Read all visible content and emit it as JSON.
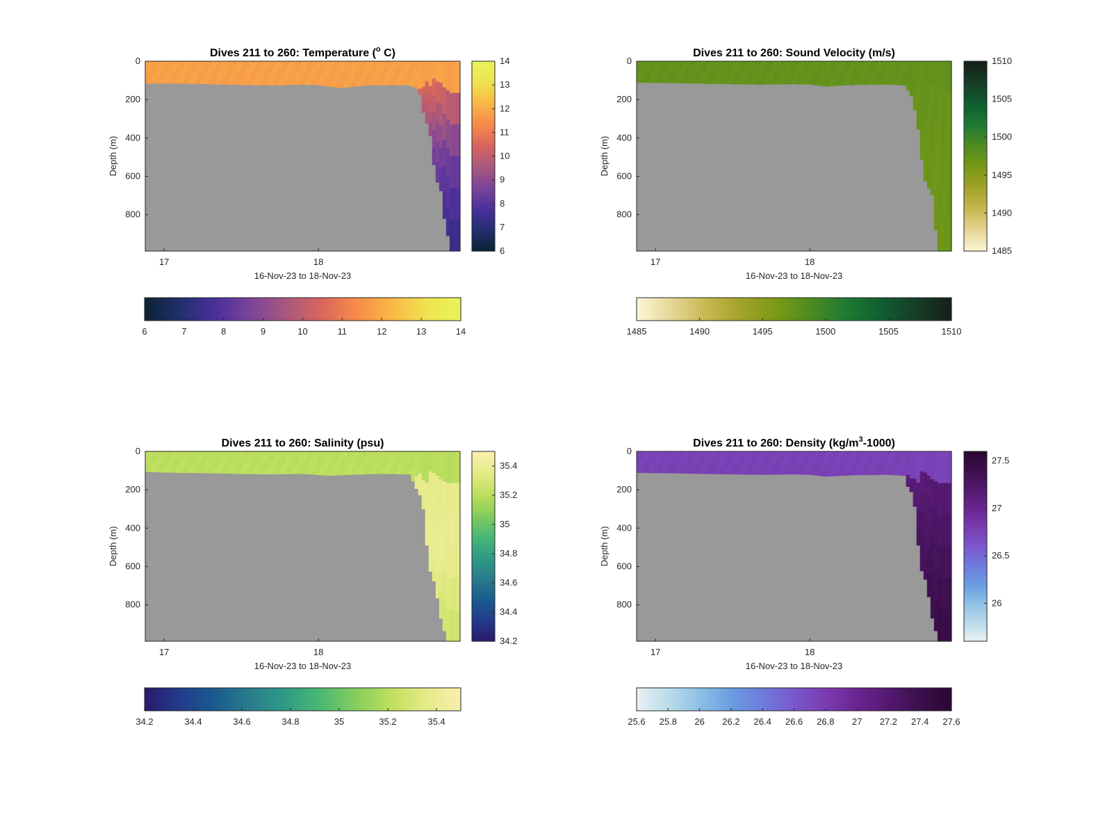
{
  "figure_background": "#ffffff",
  "mask_color": "#999999",
  "chart_data": [
    {
      "type": "heatmap",
      "variable": "temperature",
      "title": "Dives 211 to 260: Temperature (",
      "title_unit_sup": "o",
      "title_tail": " C)",
      "xlabel": "16-Nov-23 to 18-Nov-23",
      "ylabel": "Depth (m)",
      "x_ticks": [
        "17",
        "18"
      ],
      "x_tick_fraction": [
        0.06,
        0.55
      ],
      "y_ticks": [
        0,
        200,
        400,
        600,
        800
      ],
      "ylim": [
        0,
        990
      ],
      "y_reversed": true,
      "clim": [
        6,
        14
      ],
      "colorbar_ticks": [
        6,
        7,
        8,
        9,
        10,
        11,
        12,
        13,
        14
      ],
      "colormap": [
        "#0a2233",
        "#222f6e",
        "#4a2f9a",
        "#7b4499",
        "#a8577f",
        "#d7655e",
        "#f7894a",
        "#f8b646",
        "#f0e24f",
        "#e9f45a"
      ],
      "surface_value": 11.8,
      "deep_gradient": [
        11.2,
        8.5,
        7.2
      ],
      "bottom_depth_profile": [
        [
          0,
          115
        ],
        [
          0.1,
          115
        ],
        [
          0.2,
          118
        ],
        [
          0.3,
          122
        ],
        [
          0.4,
          125
        ],
        [
          0.5,
          120
        ],
        [
          0.55,
          123
        ],
        [
          0.62,
          138
        ],
        [
          0.7,
          125
        ],
        [
          0.8,
          123
        ],
        [
          0.84,
          125
        ],
        [
          0.87,
          150
        ],
        [
          0.88,
          250
        ],
        [
          0.9,
          350
        ],
        [
          0.91,
          420
        ],
        [
          0.92,
          600
        ],
        [
          0.94,
          680
        ],
        [
          0.95,
          820
        ],
        [
          0.96,
          900
        ],
        [
          0.97,
          990
        ]
      ],
      "grid": false
    },
    {
      "type": "heatmap",
      "variable": "sound_velocity",
      "title": "Dives 211 to 260: Sound Velocity (m/s)",
      "xlabel": "16-Nov-23 to 18-Nov-23",
      "ylabel": "Depth (m)",
      "x_ticks": [
        "17",
        "18"
      ],
      "x_tick_fraction": [
        0.06,
        0.55
      ],
      "y_ticks": [
        0,
        200,
        400,
        600,
        800
      ],
      "ylim": [
        0,
        990
      ],
      "y_reversed": true,
      "clim": [
        1485,
        1510
      ],
      "colorbar_ticks": [
        1485,
        1490,
        1495,
        1500,
        1505,
        1510
      ],
      "colormap": [
        "#fdf7d6",
        "#e6d597",
        "#c7b751",
        "#a2a228",
        "#7a9a16",
        "#4d8a22",
        "#1f7a33",
        "#0f5e30",
        "#163d26",
        "#141f18"
      ],
      "surface_value": 1497.5,
      "deep_gradient": [
        1497.5,
        1497.0,
        1496.8
      ],
      "bottom_depth_profile": [
        [
          0,
          110
        ],
        [
          0.1,
          112
        ],
        [
          0.2,
          115
        ],
        [
          0.3,
          118
        ],
        [
          0.4,
          120
        ],
        [
          0.5,
          118
        ],
        [
          0.55,
          120
        ],
        [
          0.6,
          130
        ],
        [
          0.65,
          125
        ],
        [
          0.7,
          122
        ],
        [
          0.8,
          120
        ],
        [
          0.85,
          125
        ],
        [
          0.87,
          170
        ],
        [
          0.88,
          220
        ],
        [
          0.89,
          320
        ],
        [
          0.9,
          400
        ],
        [
          0.91,
          600
        ],
        [
          0.93,
          670
        ],
        [
          0.94,
          700
        ],
        [
          0.95,
          880
        ],
        [
          0.96,
          990
        ]
      ],
      "grid": false
    },
    {
      "type": "heatmap",
      "variable": "salinity",
      "title": "Dives 211 to 260: Salinity (psu)",
      "xlabel": "16-Nov-23 to 18-Nov-23",
      "ylabel": "Depth (m)",
      "x_ticks": [
        "17",
        "18"
      ],
      "x_tick_fraction": [
        0.06,
        0.55
      ],
      "y_ticks": [
        0,
        200,
        400,
        600,
        800
      ],
      "ylim": [
        0,
        990
      ],
      "y_reversed": true,
      "clim": [
        34.2,
        35.5
      ],
      "colorbar_ticks": [
        34.2,
        34.4,
        34.6,
        34.8,
        35,
        35.2,
        35.4
      ],
      "colormap": [
        "#2a1a6c",
        "#233b8c",
        "#1a5b8e",
        "#2a7c8c",
        "#2f9b86",
        "#4ab874",
        "#85cd5c",
        "#bedf5e",
        "#e5ea87",
        "#f9efae"
      ],
      "surface_value": 35.2,
      "deep_gradient": [
        35.35,
        35.4,
        35.25
      ],
      "bottom_depth_profile": [
        [
          0,
          105
        ],
        [
          0.1,
          110
        ],
        [
          0.2,
          112
        ],
        [
          0.3,
          115
        ],
        [
          0.4,
          118
        ],
        [
          0.5,
          115
        ],
        [
          0.58,
          125
        ],
        [
          0.65,
          120
        ],
        [
          0.75,
          115
        ],
        [
          0.84,
          118
        ],
        [
          0.86,
          190
        ],
        [
          0.88,
          250
        ],
        [
          0.89,
          400
        ],
        [
          0.9,
          600
        ],
        [
          0.92,
          690
        ],
        [
          0.94,
          880
        ],
        [
          0.96,
          990
        ]
      ],
      "grid": false
    },
    {
      "type": "heatmap",
      "variable": "density",
      "title": "Dives 211 to 260: Density (kg/m",
      "title_unit_sup": "3",
      "title_tail": "-1000)",
      "xlabel": "16-Nov-23 to 18-Nov-23",
      "ylabel": "Depth (m)",
      "x_ticks": [
        "17",
        "18"
      ],
      "x_tick_fraction": [
        0.06,
        0.55
      ],
      "y_ticks": [
        0,
        200,
        400,
        600,
        800
      ],
      "ylim": [
        0,
        990
      ],
      "y_reversed": true,
      "clim": [
        25.6,
        27.6
      ],
      "colorbar_ticks": [
        25.6,
        25.8,
        26,
        26.2,
        26.4,
        26.6,
        26.8,
        27,
        27.2,
        27.4,
        27.6
      ],
      "colorbar_vertical_ticks": [
        26,
        26.5,
        27,
        27.5
      ],
      "colormap": [
        "#e8f1f4",
        "#bcdbe9",
        "#8ec1e6",
        "#6a9de0",
        "#6e7cdc",
        "#7a58cc",
        "#7a3cb0",
        "#6b2592",
        "#541970",
        "#3c0f4c",
        "#2a0733"
      ],
      "surface_value": 26.75,
      "deep_gradient": [
        27.1,
        27.3,
        27.45
      ],
      "bottom_depth_profile": [
        [
          0,
          110
        ],
        [
          0.1,
          112
        ],
        [
          0.2,
          115
        ],
        [
          0.3,
          118
        ],
        [
          0.4,
          120
        ],
        [
          0.5,
          118
        ],
        [
          0.55,
          120
        ],
        [
          0.6,
          130
        ],
        [
          0.65,
          125
        ],
        [
          0.7,
          122
        ],
        [
          0.8,
          120
        ],
        [
          0.85,
          125
        ],
        [
          0.86,
          180
        ],
        [
          0.88,
          230
        ],
        [
          0.89,
          400
        ],
        [
          0.9,
          600
        ],
        [
          0.92,
          680
        ],
        [
          0.94,
          880
        ],
        [
          0.96,
          990
        ]
      ],
      "grid": false
    }
  ]
}
